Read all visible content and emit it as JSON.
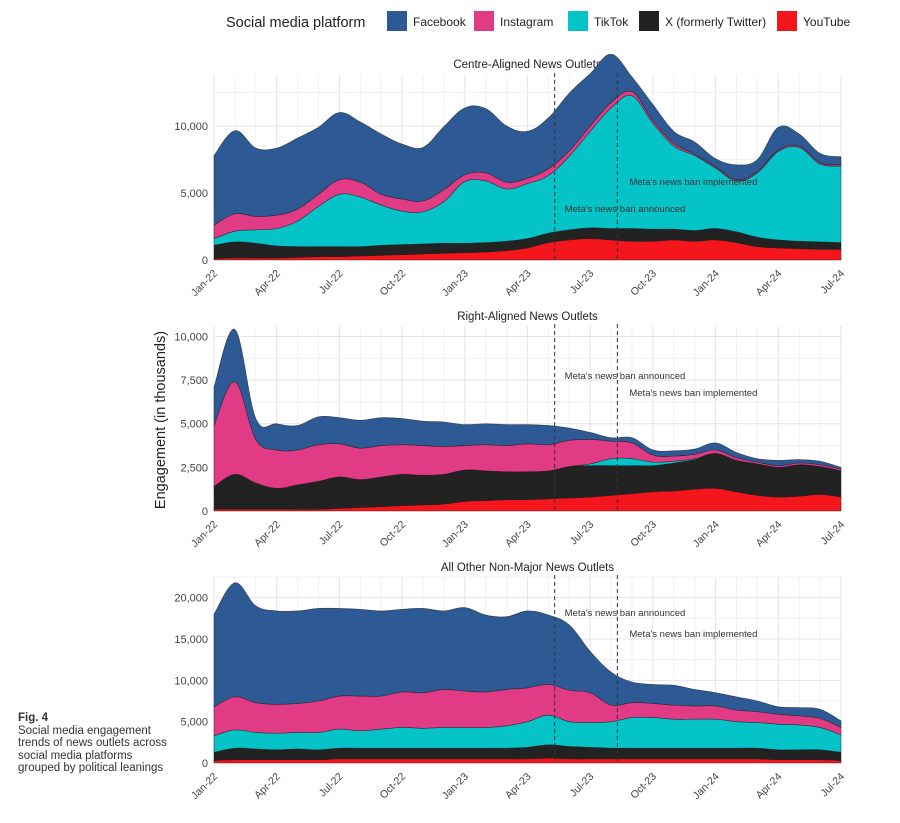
{
  "legend": {
    "title": "Social media platform",
    "items": [
      {
        "label": "Facebook",
        "color": "#2d5a94"
      },
      {
        "label": "Instagram",
        "color": "#e23b86"
      },
      {
        "label": "TikTok",
        "color": "#05c4c8"
      },
      {
        "label": "X (formerly Twitter)",
        "color": "#222222"
      },
      {
        "label": "YouTube",
        "color": "#f5161d"
      }
    ]
  },
  "ylabel": "Engagement (in thousands)",
  "caption": {
    "fig": "Fig. 4",
    "text": "Social media engagement trends of news outlets across social media platforms grouped by political leanings"
  },
  "chart_data": [
    {
      "type": "area",
      "stacked": true,
      "title": "Centre-Aligned News Outlets",
      "x": [
        "Jan-22",
        "Feb-22",
        "Mar-22",
        "Apr-22",
        "May-22",
        "Jun-22",
        "Jul-22",
        "Aug-22",
        "Sep-22",
        "Oct-22",
        "Nov-22",
        "Dec-22",
        "Jan-23",
        "Feb-23",
        "Mar-23",
        "Apr-23",
        "May-23",
        "Jun-23",
        "Jul-23",
        "Aug-23",
        "Sep-23",
        "Oct-23",
        "Nov-23",
        "Dec-23",
        "Jan-24",
        "Feb-24",
        "Mar-24",
        "Apr-24",
        "May-24",
        "Jun-24",
        "Jul-24"
      ],
      "xticks": [
        "Jan-22",
        "Apr-22",
        "Jul-22",
        "Oct-22",
        "Jan-23",
        "Apr-23",
        "Jul-23",
        "Oct-23",
        "Jan-24",
        "Apr-24",
        "Jul-24"
      ],
      "yticks": [
        0,
        5000,
        10000
      ],
      "ytick_labels": [
        "0",
        "5,000",
        "10,000"
      ],
      "ylim": [
        0,
        13800
      ],
      "series": [
        {
          "name": "YouTube",
          "values": [
            100,
            150,
            150,
            150,
            200,
            250,
            250,
            300,
            350,
            400,
            450,
            500,
            550,
            600,
            700,
            900,
            1300,
            1500,
            1600,
            1500,
            1400,
            1400,
            1500,
            1400,
            1500,
            1300,
            1000,
            900,
            850,
            800,
            800
          ]
        },
        {
          "name": "X (formerly Twitter)",
          "values": [
            1000,
            1200,
            1100,
            900,
            800,
            750,
            750,
            700,
            750,
            750,
            750,
            750,
            700,
            700,
            700,
            700,
            700,
            750,
            800,
            850,
            950,
            900,
            800,
            800,
            850,
            800,
            700,
            600,
            550,
            550,
            500
          ]
        },
        {
          "name": "TikTok",
          "values": [
            500,
            800,
            1000,
            1300,
            1900,
            3000,
            3900,
            3700,
            3000,
            2500,
            2400,
            3100,
            4600,
            4600,
            3900,
            4100,
            4300,
            5500,
            7200,
            9000,
            9900,
            7900,
            6200,
            5600,
            4500,
            3800,
            4800,
            6600,
            7000,
            5800,
            5700
          ]
        },
        {
          "name": "Instagram",
          "values": [
            1000,
            1300,
            1000,
            1000,
            900,
            900,
            1100,
            1100,
            800,
            900,
            800,
            900,
            500,
            600,
            500,
            400,
            500,
            400,
            400,
            400,
            300,
            200,
            200,
            100,
            100,
            100,
            100,
            100,
            100,
            100,
            100
          ]
        },
        {
          "name": "Facebook",
          "values": [
            5200,
            6200,
            5100,
            5000,
            5300,
            5000,
            5000,
            4500,
            4500,
            4100,
            4000,
            4700,
            5000,
            4800,
            4200,
            3500,
            3800,
            4300,
            3900,
            3600,
            1100,
            1200,
            900,
            900,
            600,
            1100,
            900,
            1700,
            900,
            700,
            600
          ]
        }
      ],
      "annotations": [
        {
          "date": "May-23",
          "label": "Meta's news ban announced"
        },
        {
          "date": "Aug-23",
          "label": "Meta's news ban implemented"
        }
      ]
    },
    {
      "type": "area",
      "stacked": true,
      "title": "Right-Aligned News Outlets",
      "x": [
        "Jan-22",
        "Feb-22",
        "Mar-22",
        "Apr-22",
        "May-22",
        "Jun-22",
        "Jul-22",
        "Aug-22",
        "Sep-22",
        "Oct-22",
        "Nov-22",
        "Dec-22",
        "Jan-23",
        "Feb-23",
        "Mar-23",
        "Apr-23",
        "May-23",
        "Jun-23",
        "Jul-23",
        "Aug-23",
        "Sep-23",
        "Oct-23",
        "Nov-23",
        "Dec-23",
        "Jan-24",
        "Feb-24",
        "Mar-24",
        "Apr-24",
        "May-24",
        "Jun-24",
        "Jul-24"
      ],
      "xticks": [
        "Jan-22",
        "Apr-22",
        "Jul-22",
        "Oct-22",
        "Jan-23",
        "Apr-23",
        "Jul-23",
        "Oct-23",
        "Jan-24",
        "Apr-24",
        "Jul-24"
      ],
      "yticks": [
        0,
        2500,
        5000,
        7500,
        10000
      ],
      "ytick_labels": [
        "0",
        "2,500",
        "5,000",
        "7,500",
        "10,000"
      ],
      "ylim": [
        0,
        10600
      ],
      "series": [
        {
          "name": "YouTube",
          "values": [
            100,
            100,
            100,
            100,
            100,
            100,
            150,
            200,
            250,
            300,
            350,
            400,
            550,
            600,
            650,
            650,
            700,
            750,
            800,
            900,
            1000,
            1100,
            1150,
            1250,
            1300,
            1100,
            900,
            800,
            850,
            950,
            800
          ]
        },
        {
          "name": "X (formerly Twitter)",
          "values": [
            1300,
            2000,
            1500,
            1200,
            1400,
            1600,
            1800,
            1600,
            1700,
            1800,
            1700,
            1700,
            1800,
            1700,
            1600,
            1600,
            1600,
            1800,
            1800,
            1700,
            1600,
            1500,
            1600,
            1700,
            2000,
            1800,
            1800,
            1700,
            1800,
            1600,
            1500
          ]
        },
        {
          "name": "TikTok",
          "values": [
            0,
            0,
            0,
            0,
            0,
            0,
            0,
            0,
            0,
            0,
            0,
            0,
            0,
            0,
            0,
            0,
            0,
            0,
            100,
            400,
            400,
            200,
            100,
            50,
            0,
            0,
            0,
            0,
            0,
            0,
            0
          ]
        },
        {
          "name": "Instagram",
          "values": [
            3500,
            5300,
            2500,
            2200,
            2000,
            2100,
            1900,
            1800,
            1800,
            1700,
            1700,
            1600,
            1400,
            1500,
            1500,
            1600,
            1500,
            1500,
            1400,
            1000,
            900,
            400,
            300,
            250,
            200,
            150,
            100,
            100,
            100,
            100,
            100
          ]
        },
        {
          "name": "Facebook",
          "values": [
            2200,
            3000,
            1200,
            1500,
            1400,
            1600,
            1500,
            1600,
            1600,
            1500,
            1400,
            1400,
            1200,
            1200,
            1200,
            1100,
            1100,
            700,
            400,
            200,
            300,
            300,
            300,
            300,
            400,
            300,
            200,
            300,
            200,
            200,
            100
          ]
        }
      ],
      "annotations": [
        {
          "date": "May-23",
          "label": "Meta's news ban announced"
        },
        {
          "date": "Aug-23",
          "label": "Meta's news ban implemented"
        }
      ]
    },
    {
      "type": "area",
      "stacked": true,
      "title": "All Other Non-Major News Outlets",
      "x": [
        "Jan-22",
        "Feb-22",
        "Mar-22",
        "Apr-22",
        "May-22",
        "Jun-22",
        "Jul-22",
        "Aug-22",
        "Sep-22",
        "Oct-22",
        "Nov-22",
        "Dec-22",
        "Jan-23",
        "Feb-23",
        "Mar-23",
        "Apr-23",
        "May-23",
        "Jun-23",
        "Jul-23",
        "Aug-23",
        "Sep-23",
        "Oct-23",
        "Nov-23",
        "Dec-23",
        "Jan-24",
        "Feb-24",
        "Mar-24",
        "Apr-24",
        "May-24",
        "Jun-24",
        "Jul-24"
      ],
      "xticks": [
        "Jan-22",
        "Apr-22",
        "Jul-22",
        "Oct-22",
        "Jan-23",
        "Apr-23",
        "Jul-23",
        "Oct-23",
        "Jan-24",
        "Apr-24",
        "Jul-24"
      ],
      "yticks": [
        0,
        5000,
        10000,
        15000,
        20000
      ],
      "ytick_labels": [
        "0",
        "5,000",
        "10,000",
        "15,000",
        "20,000"
      ],
      "ylim": [
        0,
        22500
      ],
      "series": [
        {
          "name": "YouTube",
          "values": [
            300,
            400,
            400,
            400,
            400,
            400,
            500,
            500,
            500,
            500,
            500,
            500,
            500,
            500,
            500,
            500,
            600,
            500,
            500,
            500,
            500,
            500,
            500,
            500,
            500,
            500,
            500,
            400,
            400,
            400,
            300
          ]
        },
        {
          "name": "X (formerly Twitter)",
          "values": [
            1000,
            1400,
            1300,
            1200,
            1300,
            1200,
            1300,
            1300,
            1300,
            1300,
            1300,
            1300,
            1300,
            1300,
            1300,
            1400,
            1600,
            1500,
            1400,
            1300,
            1300,
            1300,
            1300,
            1300,
            1300,
            1300,
            1300,
            1200,
            1200,
            1200,
            1000
          ]
        },
        {
          "name": "TikTok",
          "values": [
            2000,
            2200,
            2000,
            2000,
            2000,
            2100,
            2300,
            2100,
            2300,
            2500,
            2400,
            2500,
            2500,
            2500,
            2700,
            3100,
            3600,
            3000,
            3000,
            3200,
            3700,
            3700,
            3500,
            3500,
            3500,
            3200,
            3100,
            3100,
            3000,
            2700,
            2100
          ]
        },
        {
          "name": "Instagram",
          "values": [
            3500,
            4000,
            3600,
            3500,
            3500,
            3800,
            4000,
            4200,
            4000,
            4300,
            4300,
            4600,
            4400,
            4300,
            4400,
            4100,
            3700,
            3800,
            3600,
            2000,
            1800,
            1700,
            1700,
            1600,
            1600,
            1400,
            1300,
            1200,
            1100,
            1100,
            900
          ]
        },
        {
          "name": "Facebook",
          "values": [
            11200,
            13800,
            11700,
            11300,
            11200,
            11200,
            10600,
            10500,
            10300,
            10000,
            10200,
            9500,
            10100,
            9300,
            8800,
            9300,
            8400,
            7900,
            5000,
            4000,
            2500,
            2300,
            2400,
            2000,
            1600,
            1600,
            1300,
            900,
            1000,
            1100,
            800
          ]
        }
      ],
      "annotations": [
        {
          "date": "May-23",
          "label": "Meta's news ban announced"
        },
        {
          "date": "Aug-23",
          "label": "Meta's news ban implemented"
        }
      ]
    }
  ]
}
